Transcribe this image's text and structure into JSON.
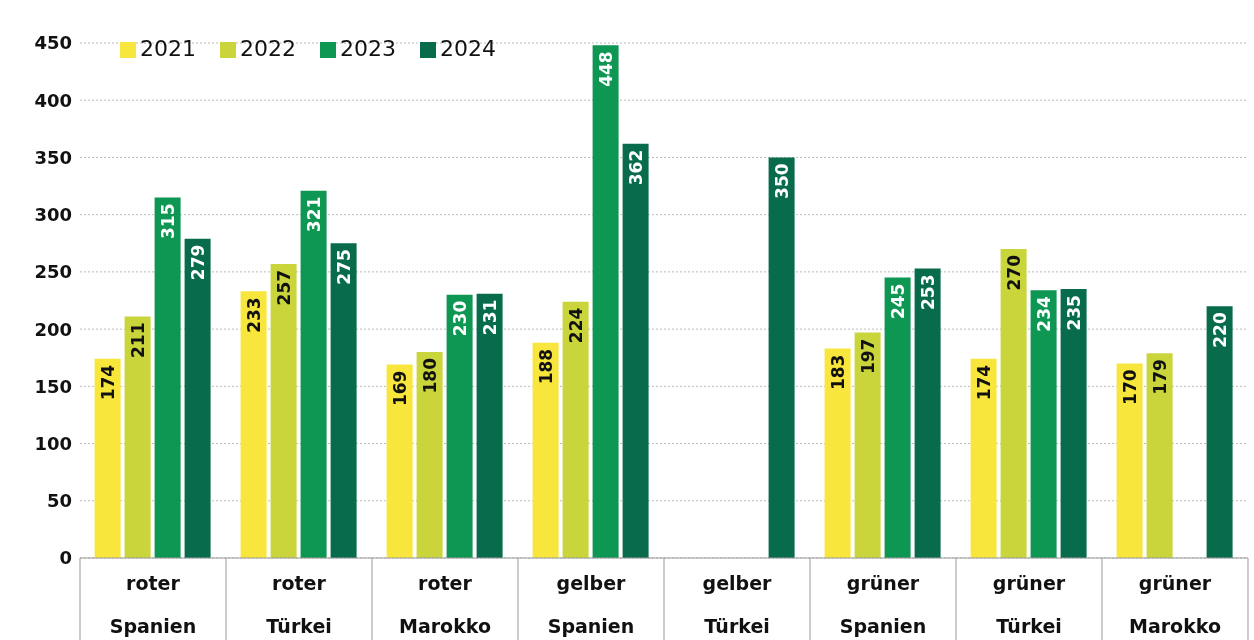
{
  "chart_data": {
    "type": "bar",
    "categories": [
      "roter Spanien",
      "roter Türkei",
      "roter Marokko",
      "gelber Spanien",
      "gelber Türkei",
      "grüner Spanien",
      "grüner Türkei",
      "grüner Marokko"
    ],
    "series": [
      {
        "name": "2021",
        "color": "#f8e63c",
        "values": [
          174,
          233,
          169,
          188,
          null,
          183,
          174,
          170
        ]
      },
      {
        "name": "2022",
        "color": "#c9d53b",
        "values": [
          211,
          257,
          180,
          224,
          null,
          197,
          270,
          179
        ]
      },
      {
        "name": "2023",
        "color": "#0e9653",
        "values": [
          315,
          321,
          230,
          448,
          null,
          245,
          234,
          null
        ]
      },
      {
        "name": "2024",
        "color": "#086b4c",
        "values": [
          279,
          275,
          231,
          362,
          350,
          253,
          235,
          220
        ]
      }
    ],
    "ylim": [
      0,
      450
    ],
    "yticks": [
      0,
      50,
      100,
      150,
      200,
      250,
      300,
      350,
      400,
      450
    ],
    "grid": "y",
    "legend": "top left",
    "data_labels": true
  }
}
